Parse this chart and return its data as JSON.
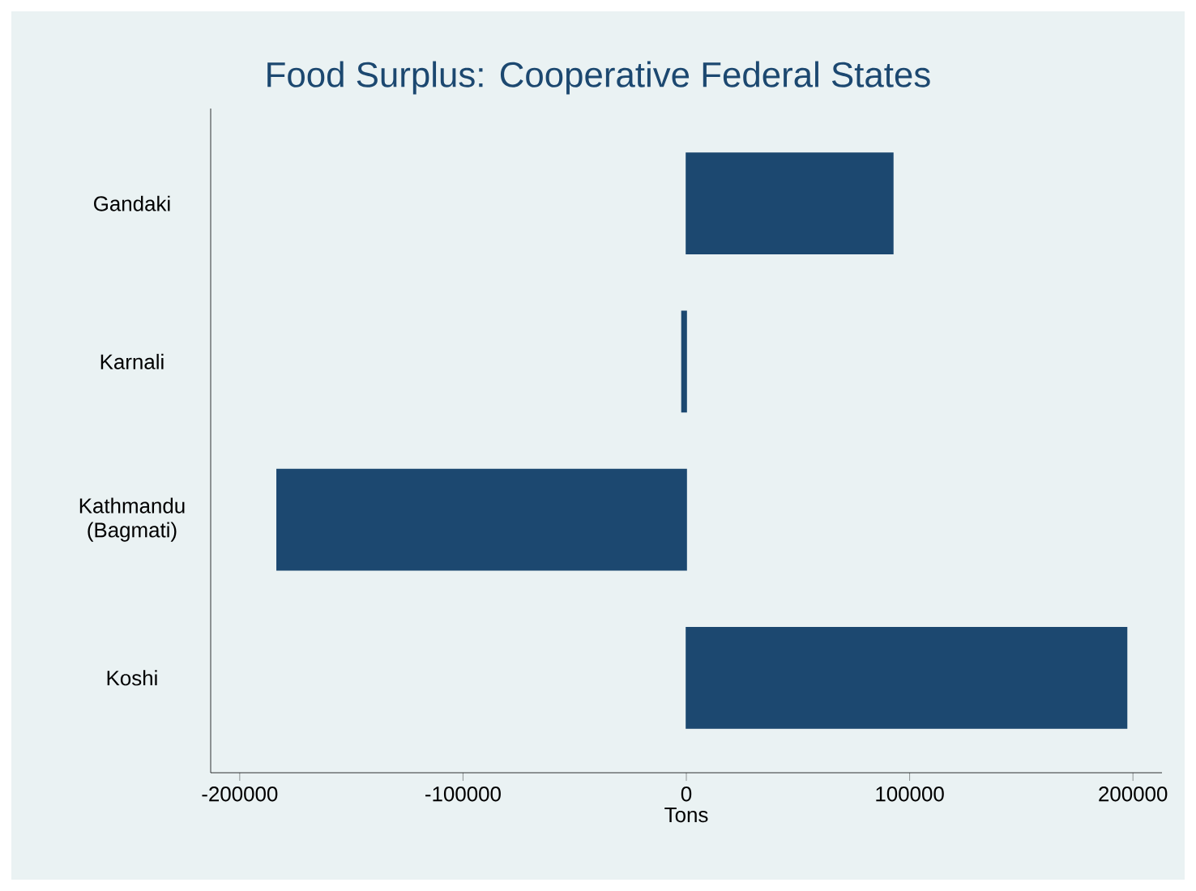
{
  "chart_data": {
    "type": "bar",
    "orientation": "horizontal",
    "title": "Food Surplus: Cooperative Federal States",
    "xlabel": "Tons",
    "categories": [
      "Gandaki",
      "Karnali",
      "Kathmandu (Bagmati)",
      "Koshi"
    ],
    "values": [
      92500,
      -2000,
      -183300,
      197200
    ],
    "color": "#1c4870",
    "xlim": [
      -213000,
      213000
    ],
    "xticks": [
      -200000,
      -100000,
      0,
      100000,
      200000
    ]
  }
}
